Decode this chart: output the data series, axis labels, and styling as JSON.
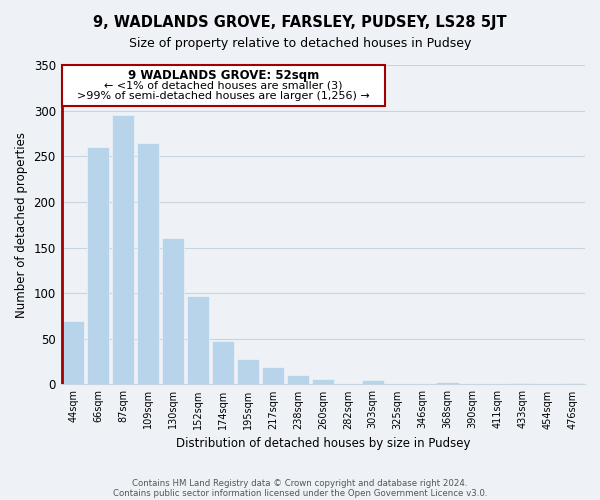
{
  "title": "9, WADLANDS GROVE, FARSLEY, PUDSEY, LS28 5JT",
  "subtitle": "Size of property relative to detached houses in Pudsey",
  "xlabel": "Distribution of detached houses by size in Pudsey",
  "ylabel": "Number of detached properties",
  "bar_color": "#b8d4ea",
  "highlight_color": "#a00000",
  "categories": [
    "44sqm",
    "66sqm",
    "87sqm",
    "109sqm",
    "130sqm",
    "152sqm",
    "174sqm",
    "195sqm",
    "217sqm",
    "238sqm",
    "260sqm",
    "282sqm",
    "303sqm",
    "325sqm",
    "346sqm",
    "368sqm",
    "390sqm",
    "411sqm",
    "433sqm",
    "454sqm",
    "476sqm"
  ],
  "values": [
    70,
    260,
    295,
    265,
    160,
    97,
    48,
    28,
    19,
    10,
    6,
    0,
    5,
    0,
    0,
    3,
    0,
    0,
    2,
    0,
    2
  ],
  "ylim": [
    0,
    350
  ],
  "yticks": [
    0,
    50,
    100,
    150,
    200,
    250,
    300,
    350
  ],
  "annotation_title": "9 WADLANDS GROVE: 52sqm",
  "annotation_line1": "← <1% of detached houses are smaller (3)",
  "annotation_line2": ">99% of semi-detached houses are larger (1,256) →",
  "footer_line1": "Contains HM Land Registry data © Crown copyright and database right 2024.",
  "footer_line2": "Contains public sector information licensed under the Open Government Licence v3.0.",
  "bg_color": "#eef2f7",
  "grid_color": "#c8d4e0",
  "title_fontsize": 10.5,
  "subtitle_fontsize": 9
}
